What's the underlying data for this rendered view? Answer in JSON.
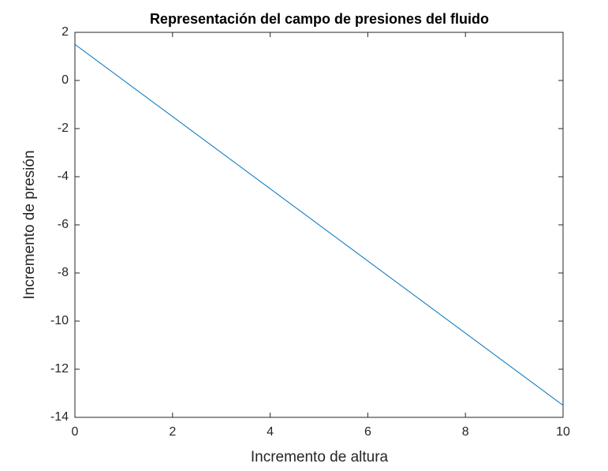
{
  "chart_data": {
    "type": "line",
    "title": "Representación del campo de presiones del fluido",
    "x_label": "Incremento de altura",
    "y_label": "Incremento de presión",
    "x": [
      0,
      10
    ],
    "series": [
      {
        "color": "#0072bd",
        "values": [
          1.5,
          -13.5
        ]
      }
    ],
    "xlim": [
      0,
      10
    ],
    "xticks": [
      0,
      2,
      4,
      6,
      8,
      10
    ],
    "ylim": [
      -14,
      2
    ],
    "yticks": [
      -14,
      -12,
      -10,
      -8,
      -6,
      -4,
      -2,
      0,
      2
    ],
    "grid": false
  }
}
